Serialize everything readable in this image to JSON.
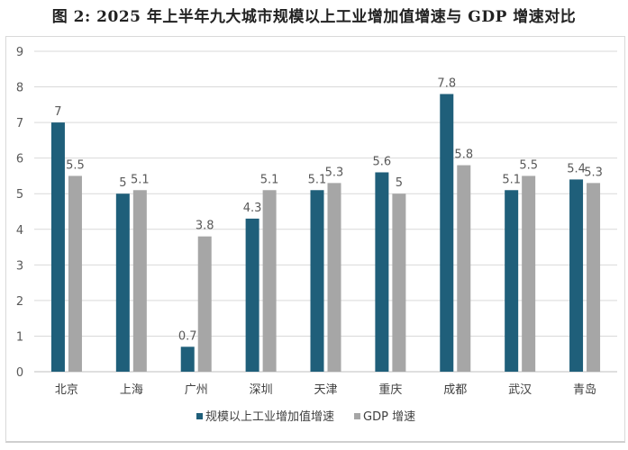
{
  "chart_data": {
    "type": "bar",
    "title": "图 2: 2025 年上半年九大城市规模以上工业增加值增速与 GDP 增速对比",
    "categories": [
      "北京",
      "上海",
      "广州",
      "深圳",
      "天津",
      "重庆",
      "成都",
      "武汉",
      "青岛"
    ],
    "series": [
      {
        "name": "规模以上工业增加值增速",
        "values": [
          7,
          5,
          0.7,
          4.3,
          5.1,
          5.6,
          7.8,
          5.1,
          5.4
        ],
        "color": "#1f5f7a"
      },
      {
        "name": "GDP 增速",
        "values": [
          5.5,
          5.1,
          3.8,
          5.1,
          5.3,
          5,
          5.8,
          5.5,
          5.3
        ],
        "color": "#a6a6a6"
      }
    ],
    "ylim": [
      0,
      9
    ],
    "yticks": [
      0,
      1,
      2,
      3,
      4,
      5,
      6,
      7,
      8,
      9
    ],
    "grid": true,
    "legend": "bottom"
  }
}
